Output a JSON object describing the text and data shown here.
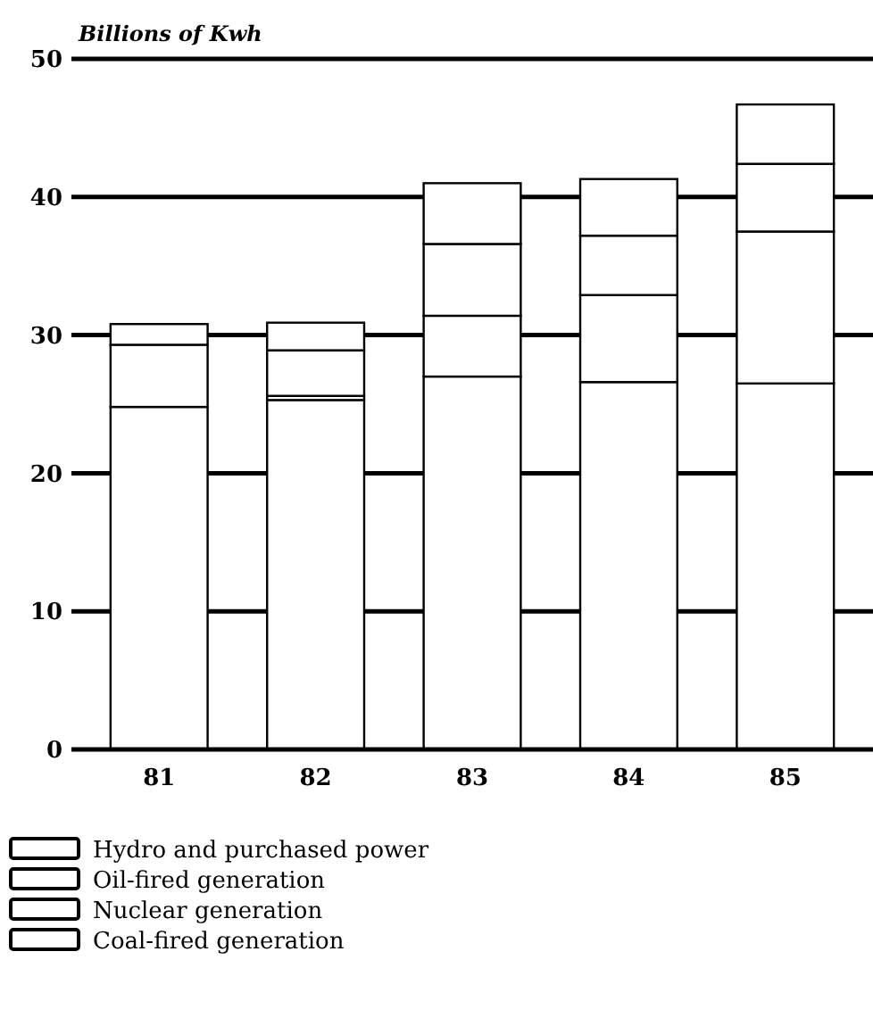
{
  "chart_data": {
    "type": "bar",
    "stacked": true,
    "ylabel": "Billions of Kwh",
    "categories": [
      "81",
      "82",
      "83",
      "84",
      "85"
    ],
    "series": [
      {
        "name": "Coal-fired generation",
        "color": "#ffffff",
        "values": [
          24.8,
          25.3,
          27.0,
          26.6,
          26.5
        ]
      },
      {
        "name": "Nuclear generation",
        "color": "#ffffff",
        "values": [
          0,
          0.3,
          4.4,
          6.3,
          11.0
        ]
      },
      {
        "name": "Oil-fired generation",
        "color": "#ffffff",
        "values": [
          4.5,
          3.3,
          5.2,
          4.3,
          4.9
        ]
      },
      {
        "name": "Hydro and purchased power",
        "color": "#ffffff",
        "values": [
          1.5,
          2.0,
          4.4,
          4.1,
          4.3
        ]
      }
    ],
    "ylim": [
      0,
      50
    ],
    "yticks": [
      0,
      10,
      20,
      30,
      40,
      50
    ],
    "grid": "y",
    "legend": "bottom left"
  }
}
